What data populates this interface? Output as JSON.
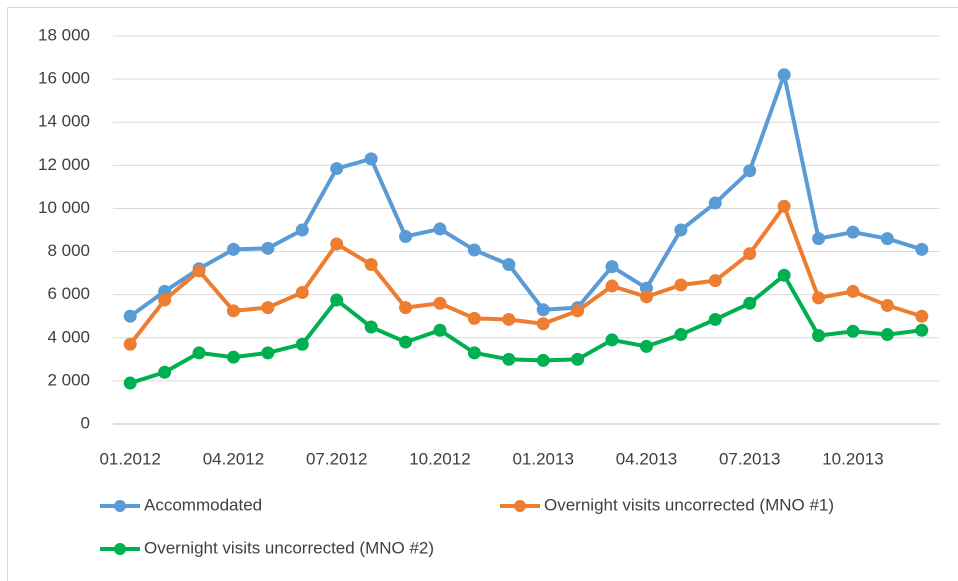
{
  "chart_data": {
    "type": "line",
    "categories": [
      "01.2012",
      null,
      null,
      "04.2012",
      null,
      null,
      "07.2012",
      null,
      null,
      "10.2012",
      null,
      null,
      "01.2013",
      null,
      null,
      "04.2013",
      null,
      null,
      "07.2013",
      null,
      null,
      "10.2013",
      null,
      null
    ],
    "series": [
      {
        "name": "Accommodated",
        "color": "#5b9bd5",
        "values": [
          5000,
          6150,
          7200,
          8100,
          8150,
          9000,
          11850,
          12300,
          8700,
          9050,
          8070,
          7400,
          5300,
          5400,
          7300,
          6300,
          9000,
          10250,
          11750,
          16200,
          8600,
          8900,
          8600,
          8100
        ]
      },
      {
        "name": "Overnight visits uncorrected (MNO #1)",
        "color": "#ed7d31",
        "values": [
          3700,
          5750,
          7100,
          5250,
          5400,
          6100,
          8350,
          7400,
          5400,
          5600,
          4900,
          4850,
          4650,
          5250,
          6400,
          5900,
          6450,
          6650,
          7900,
          10100,
          5850,
          6150,
          5500,
          5000
        ]
      },
      {
        "name": "Overnight visits uncorrected (MNO #2)",
        "color": "#00b050",
        "values": [
          1900,
          2400,
          3300,
          3100,
          3300,
          3700,
          5750,
          4500,
          3800,
          4350,
          3300,
          3000,
          2950,
          3000,
          3900,
          3600,
          4150,
          4850,
          5600,
          6900,
          4100,
          4300,
          4150,
          4350
        ]
      }
    ],
    "ylim": [
      0,
      18000
    ],
    "yticks": [
      0,
      {
        "value": 2000,
        "label": "2 000"
      },
      {
        "value": 4000,
        "label": "4 000"
      },
      {
        "value": 6000,
        "label": "6 000"
      },
      {
        "value": 8000,
        "label": "8 000"
      },
      {
        "value": 10000,
        "label": "10 000"
      },
      {
        "value": 12000,
        "label": "12 000"
      },
      {
        "value": 14000,
        "label": "14 000"
      },
      {
        "value": 16000,
        "label": "16 000"
      },
      {
        "value": 18000,
        "label": "18 000"
      }
    ],
    "grid": true,
    "legend": "bottom"
  }
}
